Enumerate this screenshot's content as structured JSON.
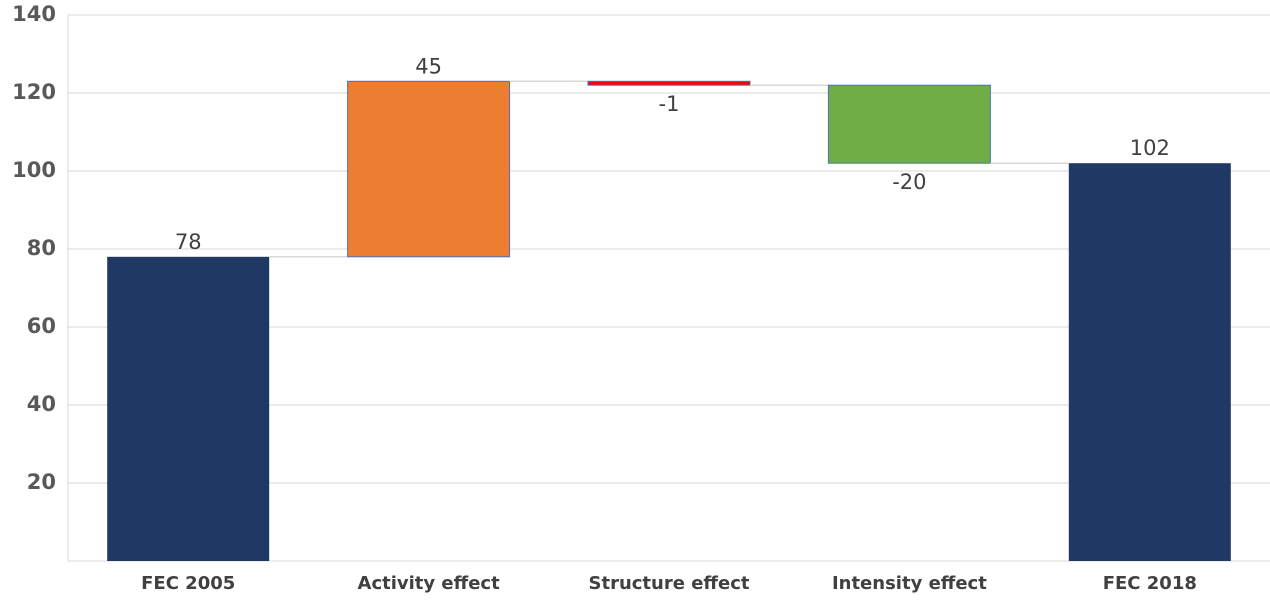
{
  "chart_data": {
    "type": "waterfall",
    "categories": [
      "FEC 2005",
      "Activity effect",
      "Structure effect",
      "Intensity effect",
      "FEC 2018"
    ],
    "values": [
      78,
      45,
      -1,
      -20,
      102
    ],
    "total": [
      true,
      false,
      false,
      false,
      true
    ],
    "colors": [
      "#1f3864",
      "#ed7d31",
      "#ff0000",
      "#70ad47",
      "#1f3864"
    ],
    "ylim": [
      0,
      140
    ],
    "yticks": [
      20,
      40,
      60,
      80,
      100,
      120,
      140
    ],
    "grid": true
  }
}
